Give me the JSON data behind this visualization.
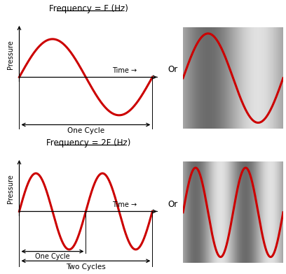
{
  "title1": "Frequency = F (Hz)",
  "title2": "Frequency = 2F (Hz)",
  "or_text": "Or",
  "pressure_label": "Pressure",
  "time_label": "Time →",
  "one_cycle_label": "One Cycle",
  "two_cycles_label": "Two Cycles",
  "one_cycle_label2": "One Cycle",
  "wave_color": "#cc0000",
  "wave_linewidth": 2.2,
  "bg_color": "#ffffff",
  "title_fontsize": 8.5,
  "label_fontsize": 7.5,
  "axis_label_fontsize": 7,
  "or_fontsize": 8.5,
  "gray_light": 0.88,
  "gray_dark": 0.42
}
